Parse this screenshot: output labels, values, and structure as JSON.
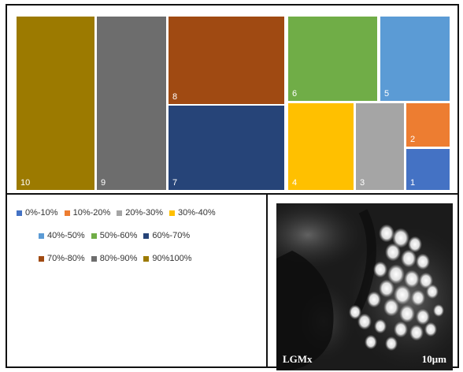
{
  "chart_data": {
    "type": "treemap",
    "cells": [
      {
        "label": "10",
        "category": "90%100%",
        "color": "#9C7A00"
      },
      {
        "label": "9",
        "category": "80%-90%",
        "color": "#6D6D6D"
      },
      {
        "label": "8",
        "category": "70%-80%",
        "color": "#A04A12"
      },
      {
        "label": "7",
        "category": "60%-70%",
        "color": "#264478"
      },
      {
        "label": "6",
        "category": "50%-60%",
        "color": "#70AD47"
      },
      {
        "label": "5",
        "category": "40%-50%",
        "color": "#5B9BD5"
      },
      {
        "label": "4",
        "category": "30%-40%",
        "color": "#FFC000"
      },
      {
        "label": "3",
        "category": "20%-30%",
        "color": "#A5A5A5"
      },
      {
        "label": "2",
        "category": "10%-20%",
        "color": "#ED7D31"
      },
      {
        "label": "1",
        "category": "0%-10%",
        "color": "#4472C4"
      }
    ],
    "legend": {
      "rows": [
        [
          {
            "label": "0%-10%",
            "color": "#4472C4"
          },
          {
            "label": "10%-20%",
            "color": "#ED7D31"
          },
          {
            "label": "20%-30%",
            "color": "#A5A5A5"
          },
          {
            "label": "30%-40%",
            "color": "#FFC000"
          }
        ],
        [
          {
            "label": "40%-50%",
            "color": "#5B9BD5"
          },
          {
            "label": "50%-60%",
            "color": "#70AD47"
          },
          {
            "label": "60%-70%",
            "color": "#264478"
          }
        ],
        [
          {
            "label": "70%-80%",
            "color": "#A04A12"
          },
          {
            "label": "80%-90%",
            "color": "#6D6D6D"
          },
          {
            "label": "90%100%",
            "color": "#9C7A00"
          }
        ]
      ]
    }
  },
  "micrograph": {
    "label_left": "LGMx",
    "label_right": "10μm"
  }
}
